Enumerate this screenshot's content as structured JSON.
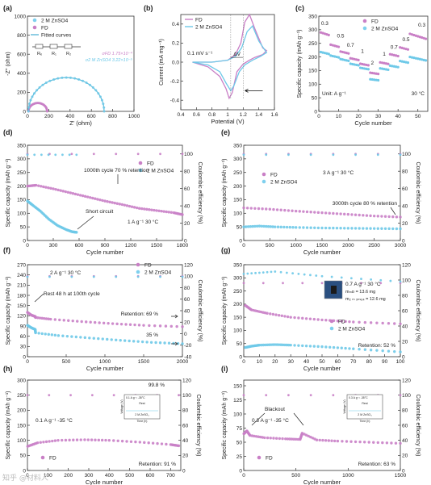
{
  "colors": {
    "fd": "#c97fc6",
    "ref": "#6ec9e8",
    "fit": "#5fbad8",
    "text": "#222222",
    "marker_fd": "#c97fc6",
    "marker_ref": "#7fd0ee"
  },
  "watermark": "知乎 @材料人",
  "chart_data": [
    {
      "id": "a",
      "letter": "(a)",
      "type": "scatter",
      "xlabel": "Z' (ohm)",
      "ylabel": "-Z'' (ohm)",
      "xlim": [
        0,
        1000
      ],
      "ylim": [
        0,
        1000
      ],
      "xticks": [
        0,
        200,
        400,
        600,
        800,
        1000
      ],
      "yticks": [
        0,
        200,
        400,
        600,
        800,
        1000
      ],
      "legend": [
        "2 M ZnSO4",
        "FD",
        "Fitted curves"
      ],
      "annotations": {
        "circuit_labels": [
          "Rₑ",
          "R₁",
          "R₂"
        ],
        "sigma_fd": "σFD 1.75×10⁻⁴",
        "sigma_ref": "σ2 M ZnSO4 3.22×10⁻⁵"
      },
      "series": [
        {
          "name": "FD",
          "role": "fd",
          "kind": "arc",
          "r0": 10,
          "diameter": 175
        },
        {
          "name": "2 M ZnSO4",
          "role": "ref",
          "kind": "arc",
          "r0": 10,
          "diameter": 710
        }
      ]
    },
    {
      "id": "b",
      "letter": "(b)",
      "type": "line",
      "xlabel": "Potential (V)",
      "ylabel": "Current (mA mg⁻¹)",
      "xlim": [
        0.4,
        1.6
      ],
      "ylim": [
        -0.5,
        0.5
      ],
      "xticks": [
        0.4,
        0.6,
        0.8,
        1.0,
        1.2,
        1.4,
        1.6
      ],
      "yticks": [
        -0.4,
        -0.2,
        0.0,
        0.2,
        0.4
      ],
      "legend": [
        "FD",
        "2 M ZnSO4"
      ],
      "annotations": {
        "scan_rate": "0.1 mV s⁻¹",
        "delta": "ΔV"
      },
      "series": [
        {
          "name": "FD",
          "role": "fd",
          "x": [
            0.55,
            0.8,
            1.0,
            1.1,
            1.17,
            1.22,
            1.28,
            1.35,
            1.45,
            1.5,
            1.45,
            1.35,
            1.28,
            1.2,
            1.12,
            1.06,
            1.02,
            0.98,
            0.9,
            0.75,
            0.55
          ],
          "y": [
            0.0,
            0.0,
            0.02,
            0.08,
            0.2,
            0.42,
            0.5,
            0.35,
            0.15,
            0.12,
            0.08,
            0.05,
            0.02,
            -0.02,
            -0.1,
            -0.32,
            -0.38,
            -0.28,
            -0.15,
            -0.05,
            0.0
          ]
        },
        {
          "name": "2 M ZnSO4",
          "role": "ref",
          "x": [
            0.55,
            0.8,
            1.0,
            1.1,
            1.18,
            1.25,
            1.32,
            1.4,
            1.5,
            1.42,
            1.32,
            1.22,
            1.15,
            1.08,
            1.04,
            0.98,
            0.9,
            0.75,
            0.55
          ],
          "y": [
            0.0,
            0.0,
            0.02,
            0.06,
            0.15,
            0.32,
            0.38,
            0.22,
            0.1,
            0.06,
            0.02,
            -0.03,
            -0.1,
            -0.25,
            -0.3,
            -0.22,
            -0.1,
            -0.03,
            0.0
          ]
        }
      ]
    },
    {
      "id": "c",
      "letter": "(c)",
      "type": "scatter",
      "xlabel": "Cycle number",
      "ylabel": "Specific capacity (mAh g⁻¹)",
      "xlim": [
        0,
        55
      ],
      "ylim": [
        0,
        350
      ],
      "xticks": [
        0,
        10,
        20,
        30,
        40,
        50
      ],
      "yticks": [
        0,
        50,
        100,
        150,
        200,
        250,
        300,
        350
      ],
      "legend": [
        "FD",
        "2 M ZnSO4"
      ],
      "annotations": {
        "unit": "Unit: A g⁻¹",
        "temp": "30 °C"
      },
      "rate_labels": [
        {
          "text": "0.3",
          "x": 3,
          "y": 318
        },
        {
          "text": "0.5",
          "x": 11,
          "y": 272
        },
        {
          "text": "0.7",
          "x": 16,
          "y": 238
        },
        {
          "text": "1",
          "x": 22,
          "y": 215
        },
        {
          "text": "2",
          "x": 27,
          "y": 172
        },
        {
          "text": "1",
          "x": 33,
          "y": 205
        },
        {
          "text": "0.7",
          "x": 38,
          "y": 230
        },
        {
          "text": "0.5",
          "x": 44,
          "y": 258
        },
        {
          "text": "0.3",
          "x": 52,
          "y": 312
        }
      ],
      "series": [
        {
          "name": "FD",
          "role": "fd",
          "steps": [
            [
              1,
              5,
              290
            ],
            [
              6,
              10,
              245
            ],
            [
              11,
              15,
              220
            ],
            [
              16,
              20,
              195
            ],
            [
              21,
              25,
              175
            ],
            [
              26,
              30,
              142
            ],
            [
              31,
              35,
              180
            ],
            [
              36,
              40,
              210
            ],
            [
              41,
              45,
              235
            ],
            [
              46,
              54,
              285
            ]
          ]
        },
        {
          "name": "2 M ZnSO4",
          "role": "ref",
          "steps": [
            [
              1,
              5,
              218
            ],
            [
              6,
              10,
              205
            ],
            [
              11,
              15,
              192
            ],
            [
              16,
              20,
              175
            ],
            [
              21,
              25,
              160
            ],
            [
              26,
              30,
              118
            ],
            [
              31,
              35,
              158
            ],
            [
              36,
              40,
              168
            ],
            [
              41,
              45,
              185
            ],
            [
              46,
              54,
              200
            ]
          ]
        }
      ]
    },
    {
      "id": "d",
      "letter": "(d)",
      "type": "scatter",
      "xlabel": "Cycle number",
      "ylabel": "Specific capacity (mAh g⁻¹)",
      "ylabel2": "Coulombic efficiency (%)",
      "xlim": [
        0,
        1800
      ],
      "ylim": [
        0,
        350
      ],
      "y2lim": [
        0,
        110
      ],
      "xticks": [
        0,
        300,
        600,
        900,
        1200,
        1500,
        1800
      ],
      "yticks": [
        0,
        50,
        100,
        150,
        200,
        250,
        300,
        350
      ],
      "y2ticks": [
        0,
        20,
        40,
        60,
        80,
        100
      ],
      "legend": [
        "FD",
        "2 M ZnSO4"
      ],
      "annotations": {
        "retention": "1000th cycle 70 % retention",
        "short": "Short circuit",
        "cond": "1 A g⁻¹    30 °C"
      },
      "series": [
        {
          "name": "FD",
          "role": "fd",
          "x": [
            0,
            100,
            300,
            500,
            700,
            900,
            1100,
            1300,
            1500,
            1700,
            1800
          ],
          "y": [
            200,
            203,
            190,
            175,
            160,
            145,
            132,
            118,
            110,
            102,
            95
          ]
        },
        {
          "name": "2 M ZnSO4",
          "role": "ref",
          "x": [
            0,
            60,
            150,
            250,
            350,
            450,
            520,
            570
          ],
          "y": [
            145,
            130,
            108,
            78,
            55,
            40,
            32,
            30
          ]
        },
        {
          "name": "FD CE",
          "role": "fd",
          "axis": "y2",
          "x": [
            0,
            1800
          ],
          "y": [
            100,
            100
          ]
        },
        {
          "name": "2 M ZnSO4 CE",
          "role": "ref",
          "axis": "y2",
          "x": [
            0,
            570
          ],
          "y": [
            99,
            99
          ]
        }
      ]
    },
    {
      "id": "e",
      "letter": "(e)",
      "type": "scatter",
      "xlabel": "Cycle number",
      "ylabel": "Specific capacity (mAh g⁻¹)",
      "ylabel2": "Coulombic efficiency (%)",
      "xlim": [
        0,
        3000
      ],
      "ylim": [
        0,
        350
      ],
      "y2lim": [
        0,
        110
      ],
      "xticks": [
        0,
        500,
        1000,
        1500,
        2000,
        2500,
        3000
      ],
      "yticks": [
        0,
        50,
        100,
        150,
        200,
        250,
        300,
        350
      ],
      "y2ticks": [
        0,
        20,
        40,
        60,
        80,
        100
      ],
      "legend": [
        "FD",
        "2 M ZnSO4"
      ],
      "annotations": {
        "cond": "3 A g⁻¹   30 °C",
        "retention": "3000th cycle 80 % retention"
      },
      "series": [
        {
          "name": "FD",
          "role": "fd",
          "x": [
            0,
            500,
            1000,
            1500,
            2000,
            2500,
            3000
          ],
          "y": [
            120,
            115,
            108,
            102,
            96,
            90,
            86
          ]
        },
        {
          "name": "2 M ZnSO4",
          "role": "ref",
          "x": [
            0,
            300,
            600,
            1000,
            1500,
            2000,
            2500,
            3000
          ],
          "y": [
            50,
            53,
            50,
            48,
            46,
            45,
            44,
            43
          ]
        },
        {
          "name": "FD CE",
          "role": "fd",
          "axis": "y2",
          "x": [
            0,
            3000
          ],
          "y": [
            100,
            100
          ]
        },
        {
          "name": "2 M ZnSO4 CE",
          "role": "ref",
          "axis": "y2",
          "x": [
            0,
            3000
          ],
          "y": [
            99,
            99
          ]
        }
      ]
    },
    {
      "id": "f",
      "letter": "(f)",
      "type": "scatter",
      "xlabel": "Cycle number",
      "ylabel": "Specific capacity (mAh g⁻¹)",
      "ylabel2": "Coulombic efficiency (%)",
      "xlim": [
        0,
        2000
      ],
      "ylim": [
        0,
        270
      ],
      "y2lim": [
        -40,
        120
      ],
      "xticks": [
        0,
        500,
        1000,
        1500,
        2000
      ],
      "yticks": [
        0,
        30,
        60,
        90,
        120,
        150,
        180,
        210,
        240,
        270
      ],
      "y2ticks": [
        -40,
        -20,
        0,
        20,
        40,
        60,
        80,
        100,
        120
      ],
      "legend": [
        "FD",
        "2 M ZnSO4"
      ],
      "annotations": {
        "cond": "2 A g⁻¹    30 °C",
        "rest": "Rest 48 h at 100th cycle",
        "ret_fd": "Retention: 69 %",
        "ret_ref": "35 %"
      },
      "series": [
        {
          "name": "FD",
          "role": "fd",
          "x": [
            0,
            50,
            100,
            105,
            300,
            700,
            1100,
            1500,
            2000
          ],
          "y": [
            130,
            122,
            118,
            115,
            110,
            103,
            97,
            92,
            88
          ]
        },
        {
          "name": "2 M ZnSO4",
          "role": "ref",
          "x": [
            0,
            50,
            100,
            105,
            400,
            800,
            1200,
            1600,
            2000
          ],
          "y": [
            92,
            85,
            80,
            70,
            62,
            55,
            48,
            42,
            38
          ]
        },
        {
          "name": "FD CE",
          "role": "fd",
          "axis": "y2",
          "x": [
            0,
            2000
          ],
          "y": [
            100,
            100
          ]
        },
        {
          "name": "2 M ZnSO4 CE",
          "role": "ref",
          "axis": "y2",
          "x": [
            0,
            2000
          ],
          "y": [
            99,
            99
          ]
        }
      ]
    },
    {
      "id": "g",
      "letter": "(g)",
      "type": "scatter",
      "xlabel": "Cycle number",
      "ylabel": "Specific capacity (mAh g⁻¹)",
      "ylabel2": "Coulombic efficiency (%)",
      "xlim": [
        0,
        100
      ],
      "ylim": [
        0,
        350
      ],
      "y2lim": [
        0,
        120
      ],
      "xticks": [
        0,
        10,
        20,
        30,
        40,
        50,
        60,
        70,
        80,
        90,
        100
      ],
      "yticks": [
        0,
        50,
        100,
        150,
        200,
        250,
        300,
        350
      ],
      "y2ticks": [
        0,
        20,
        40,
        60,
        80,
        100,
        120
      ],
      "legend": [
        "FD",
        "2 M ZnSO4"
      ],
      "annotations": {
        "cond": "0.7 A g⁻¹   30 °C",
        "mass1": "mₘᴅ = 13.6 mg",
        "mass2": "m₂ ₘ ₓₙₛₒ₄ = 12.6 mg",
        "retention": "Retention: 52 %"
      },
      "series": [
        {
          "name": "FD",
          "role": "fd",
          "x": [
            1,
            5,
            15,
            30,
            50,
            70,
            100
          ],
          "y": [
            195,
            178,
            165,
            150,
            140,
            132,
            125
          ]
        },
        {
          "name": "2 M ZnSO4",
          "role": "ref",
          "x": [
            1,
            5,
            10,
            20,
            30,
            50,
            70,
            100
          ],
          "y": [
            35,
            40,
            44,
            46,
            44,
            38,
            30,
            18
          ]
        },
        {
          "name": "FD CE",
          "role": "fd",
          "axis": "y2",
          "x": [
            0,
            100
          ],
          "y": [
            96,
            96
          ]
        },
        {
          "name": "2 M ZnSO4 CE",
          "role": "ref",
          "axis": "y2",
          "x": [
            0,
            20,
            50,
            100
          ],
          "y": [
            108,
            111,
            105,
            98
          ]
        }
      ]
    },
    {
      "id": "h",
      "letter": "(h)",
      "type": "scatter",
      "xlabel": "Cycle number",
      "ylabel": "Specific capacity (mAh g⁻¹)",
      "ylabel2": "Coulombic efficiency (%)",
      "xlim": [
        0,
        750
      ],
      "ylim": [
        0,
        300
      ],
      "y2lim": [
        0,
        120
      ],
      "xticks": [
        0,
        100,
        200,
        300,
        400,
        500,
        600,
        700
      ],
      "yticks": [
        0,
        50,
        100,
        150,
        200,
        250,
        300
      ],
      "y2ticks": [
        0,
        20,
        40,
        60,
        80,
        100,
        120
      ],
      "legend": [
        "FD"
      ],
      "annotations": {
        "cond": "0.1 A g⁻¹   -35 °C",
        "ce": "99.8 %",
        "retention": "Retention: 91 %",
        "inset_label": "0.1 A g⁻¹  -35°C",
        "inset_rest": "Rest",
        "inset_ref": "2 M ZnSO₄",
        "inset_x": "Time (h)",
        "inset_y": "Voltage (V)"
      },
      "series": [
        {
          "name": "FD",
          "role": "fd",
          "x": [
            1,
            50,
            150,
            280,
            400,
            550,
            700,
            740
          ],
          "y": [
            80,
            92,
            100,
            102,
            100,
            94,
            86,
            82
          ]
        },
        {
          "name": "FD CE",
          "role": "fd",
          "axis": "y2",
          "x": [
            0,
            740
          ],
          "y": [
            100,
            100
          ]
        }
      ]
    },
    {
      "id": "i",
      "letter": "(i)",
      "type": "scatter",
      "xlabel": "Cycle number",
      "ylabel": "Specific capacity (mAh g⁻¹)",
      "ylabel2": "Coulombic efficiency (%)",
      "xlim": [
        0,
        1500
      ],
      "ylim": [
        0,
        160
      ],
      "y2lim": [
        0,
        120
      ],
      "xticks": [
        0,
        500,
        1000,
        1500
      ],
      "yticks": [
        0,
        25,
        50,
        75,
        100,
        125,
        150
      ],
      "y2ticks": [
        0,
        20,
        40,
        60,
        80,
        100,
        120
      ],
      "legend": [
        "FD"
      ],
      "annotations": {
        "cond": "0.3 A g⁻¹   -35 °C",
        "blackout": "Blackout",
        "retention": "Retention: 63 %",
        "inset_label": "0.3 A g⁻¹  -35°C",
        "inset_rest": "Rest",
        "inset_ref": "2 M ZnSO₄",
        "inset_x": "Time (h)",
        "inset_y": "Voltage (V)"
      },
      "series": [
        {
          "name": "FD",
          "role": "fd",
          "x": [
            1,
            30,
            60,
            200,
            400,
            540,
            560,
            700,
            900,
            1200,
            1500
          ],
          "y": [
            65,
            70,
            62,
            58,
            56,
            55,
            66,
            54,
            52,
            50,
            48
          ]
        },
        {
          "name": "FD CE",
          "role": "fd",
          "axis": "y2",
          "x": [
            0,
            1500
          ],
          "y": [
            100,
            100
          ]
        }
      ]
    }
  ]
}
